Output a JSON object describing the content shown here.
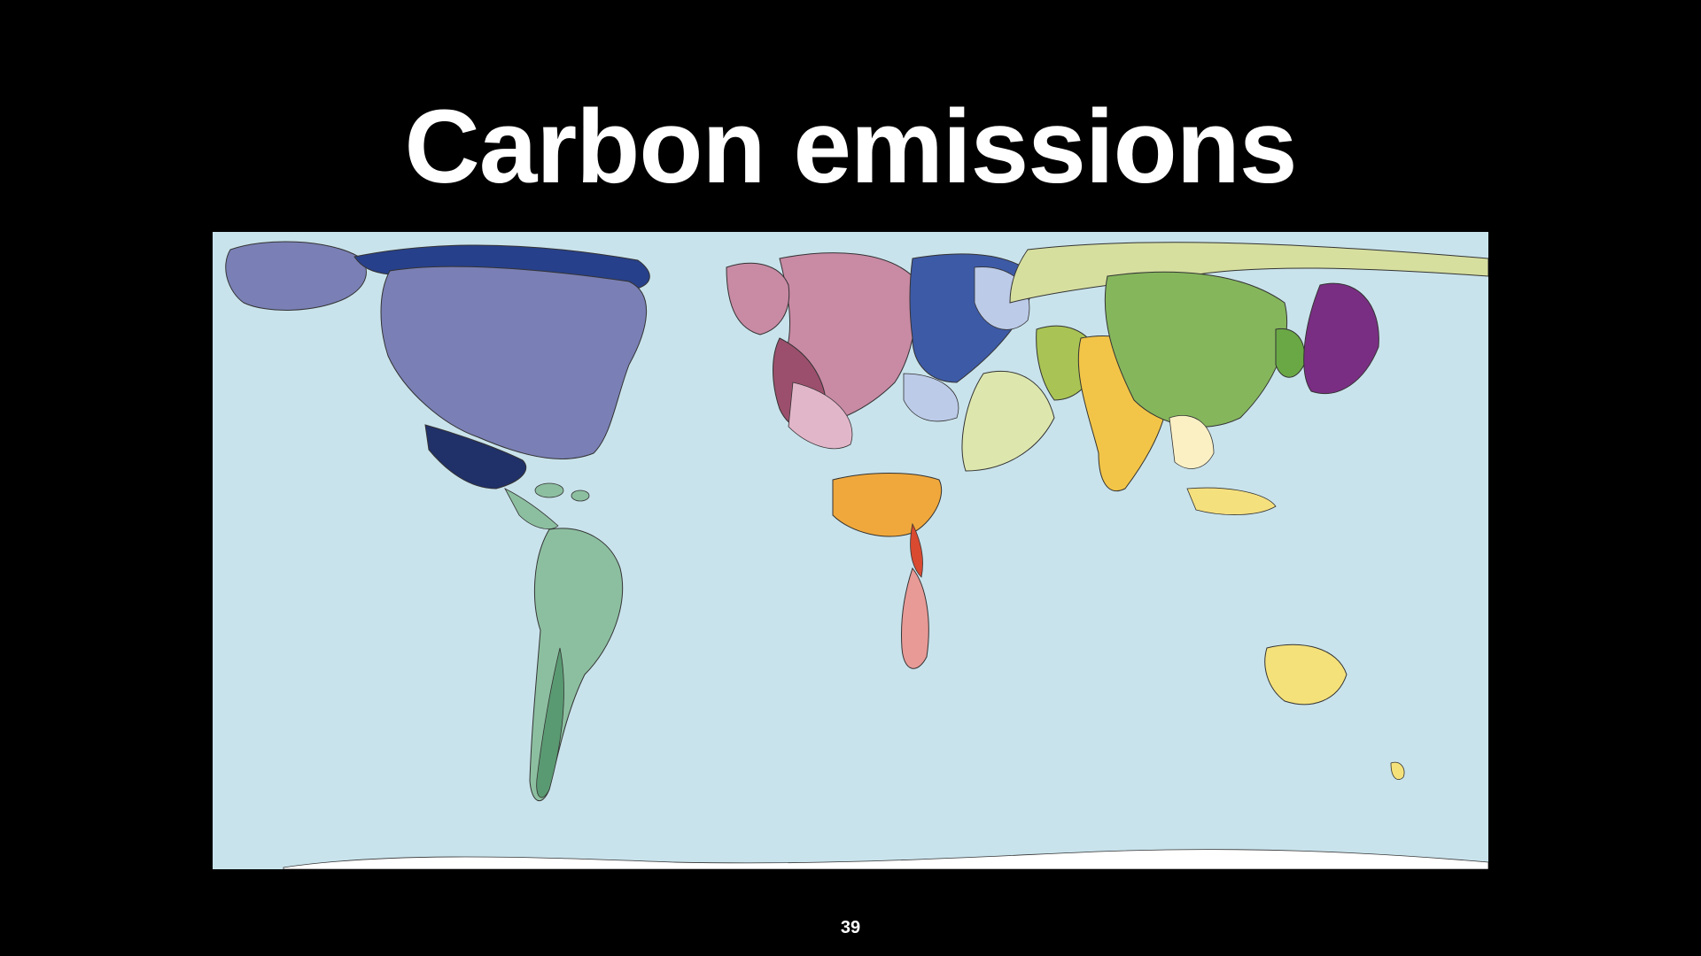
{
  "slide": {
    "title": "Carbon emissions",
    "page_number": "39"
  },
  "map": {
    "type": "cartogram",
    "ocean_color": "#c9e3ec",
    "antarctica_color": "#ffffff",
    "region_colors": {
      "north_america": "#7a80b5",
      "north_america_dark": "#27408b",
      "mexico": "#203068",
      "south_america": "#8cbfa0",
      "south_america_dark": "#5a9a72",
      "western_europe": "#c98aa4",
      "western_europe_dark": "#9c4f6c",
      "eastern_europe": "#3d5aa6",
      "eastern_europe_light": "#bccbe8",
      "russia": "#d6df9e",
      "central_asia": "#a9c454",
      "middle_east": "#dde7ad",
      "north_africa": "#f0a83c",
      "southern_africa": "#d94a30",
      "south_africa": "#e89a96",
      "india": "#f2c548",
      "china": "#85b65c",
      "korea": "#6aa845",
      "japan": "#7a2e83",
      "southeast_asia": "#fbf0c4",
      "indonesia": "#f5e07e",
      "australia": "#f4e17a"
    }
  }
}
